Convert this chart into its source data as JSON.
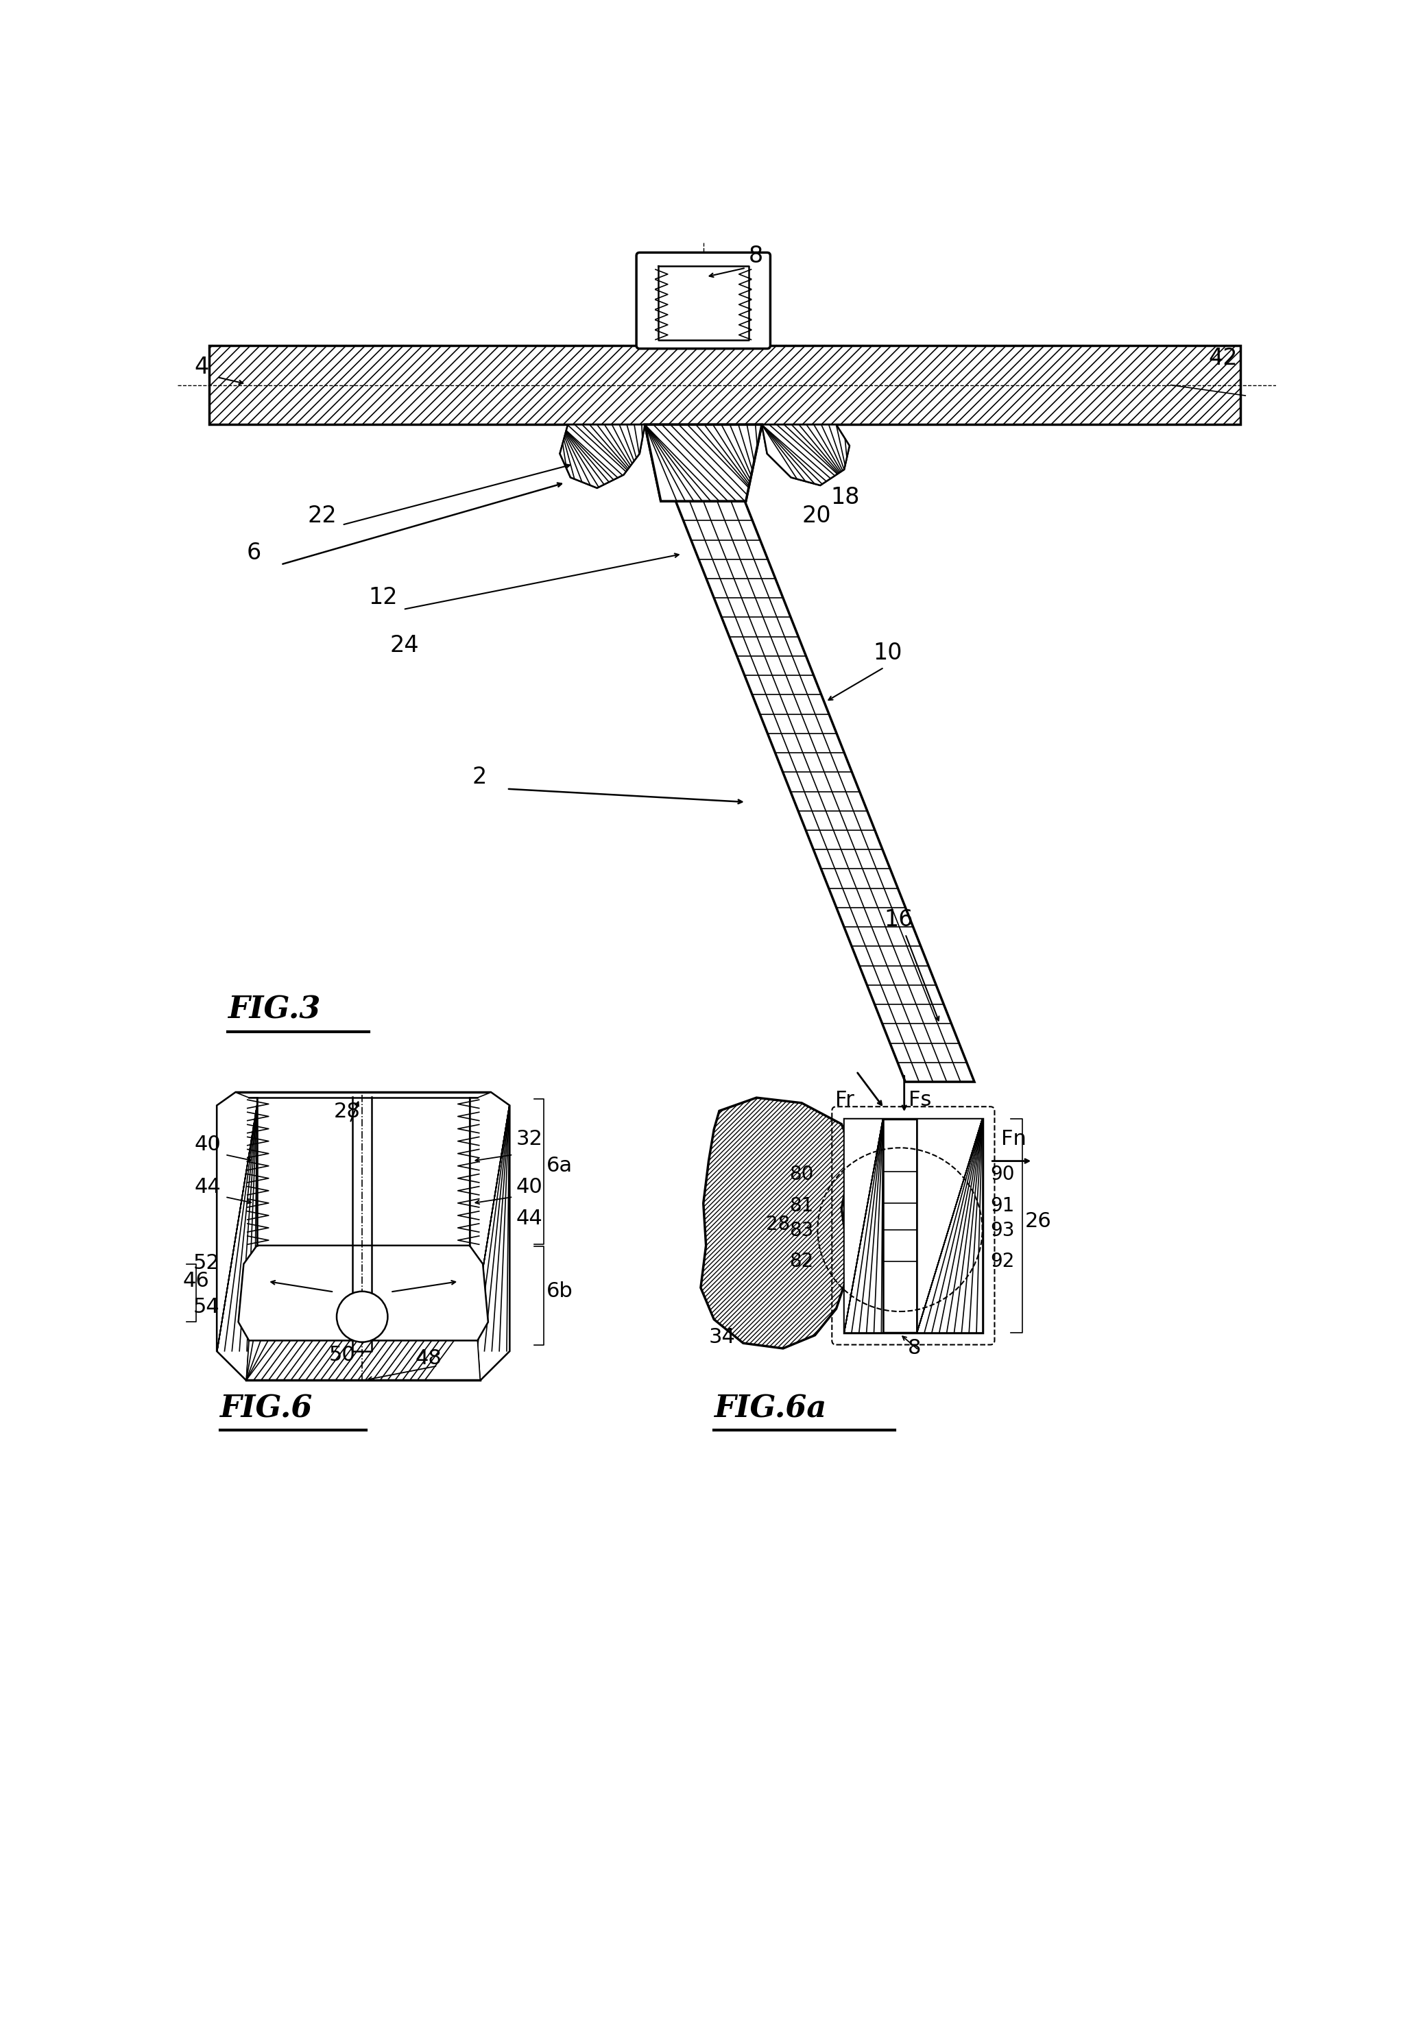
{
  "bg_color": "#ffffff",
  "line_color": "#000000",
  "fig_width": 20.68,
  "fig_height": 29.48,
  "fig3_title": "FIG.3",
  "fig6_title": "FIG.6",
  "fig6a_title": "FIG.6a"
}
